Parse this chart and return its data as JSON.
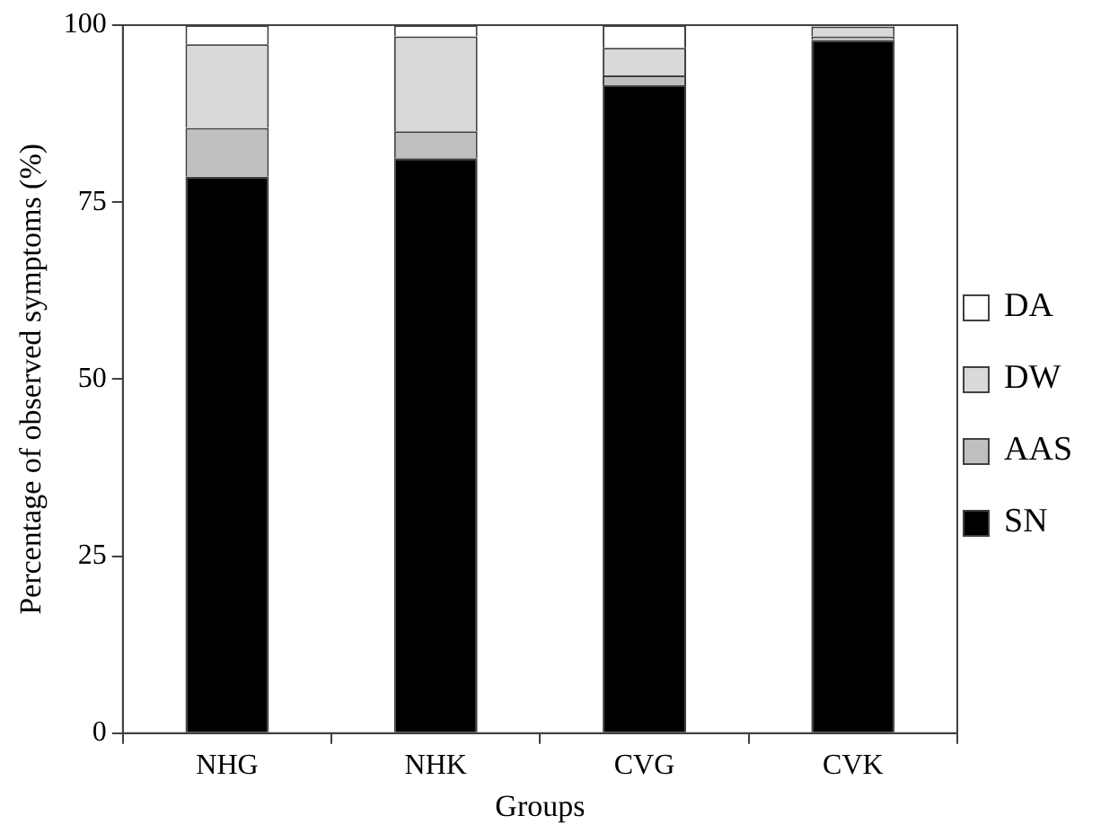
{
  "chart_data": {
    "type": "bar",
    "stacked": true,
    "xlabel": "Groups",
    "ylabel": "Percentage of observed symptoms (%)",
    "categories": [
      "NHG",
      "NHK",
      "CVG",
      "CVK"
    ],
    "series": [
      {
        "name": "SN",
        "color": "#000000",
        "values": [
          78.6,
          81.2,
          91.5,
          97.9
        ]
      },
      {
        "name": "AAS",
        "color": "#bfbfbf",
        "values": [
          6.9,
          3.8,
          1.4,
          0.5
        ]
      },
      {
        "name": "DW",
        "color": "#d9d9d9",
        "values": [
          11.8,
          13.4,
          3.9,
          1.4
        ]
      },
      {
        "name": "DA",
        "color": "#ffffff",
        "values": [
          2.7,
          1.6,
          3.2,
          0.2
        ]
      }
    ],
    "ylim": [
      0,
      100
    ],
    "yticks": [
      0,
      25,
      50,
      75,
      100
    ],
    "grid": false,
    "legend": "right"
  }
}
